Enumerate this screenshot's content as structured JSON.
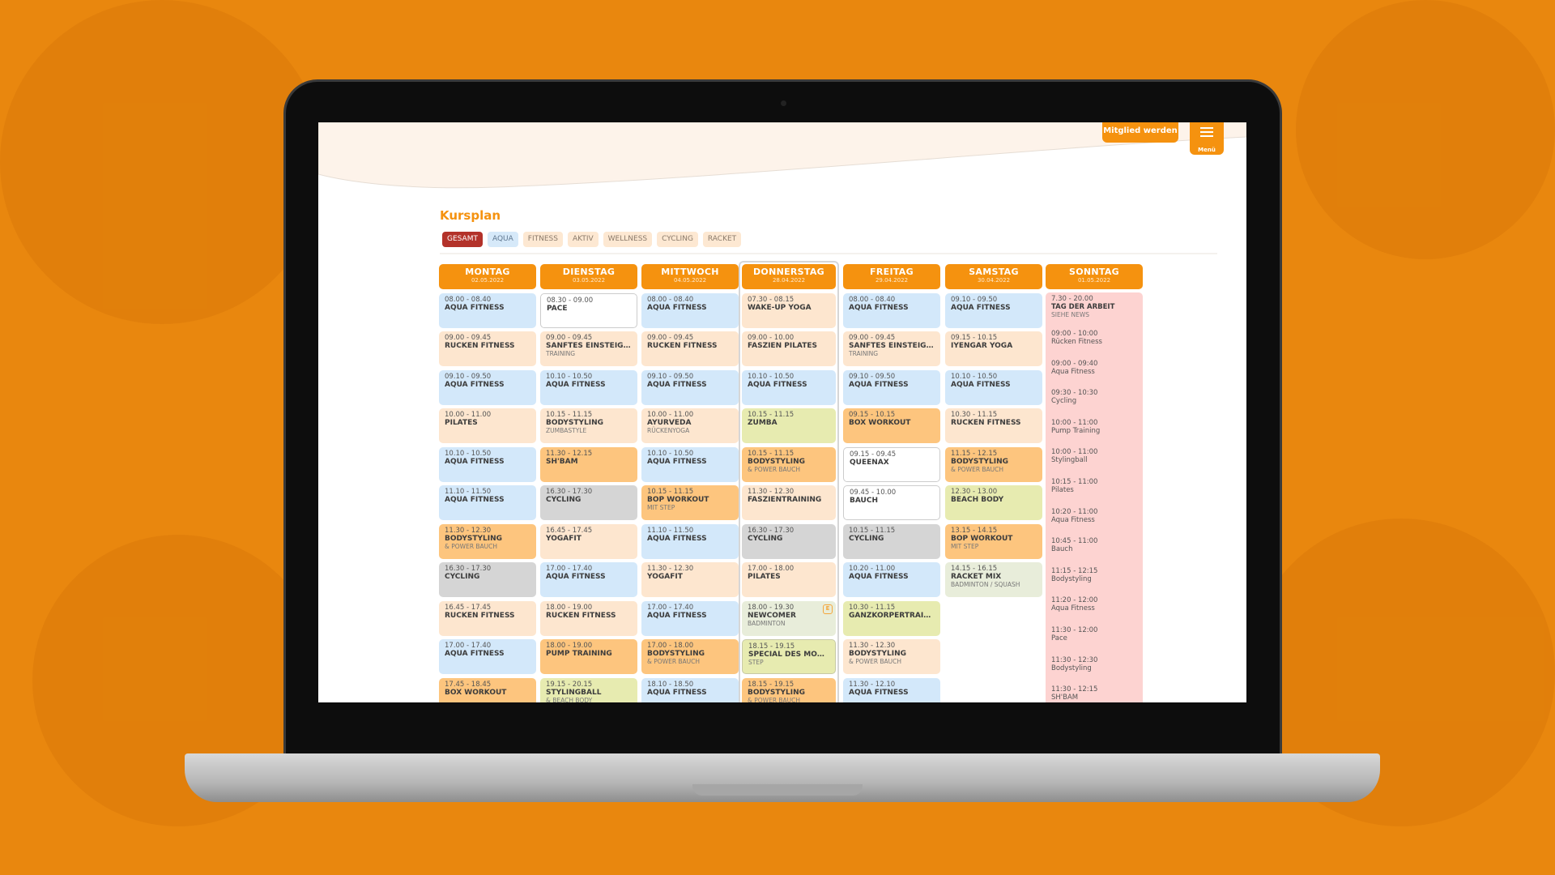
{
  "header": {
    "member_button": "Mitglied werden",
    "menu_label": "Menü"
  },
  "page_title": "Kursplan",
  "filters": [
    {
      "label": "GESAMT",
      "active": true
    },
    {
      "label": "AQUA"
    },
    {
      "label": "FITNESS"
    },
    {
      "label": "AKTIV"
    },
    {
      "label": "WELLNESS"
    },
    {
      "label": "CYCLING"
    },
    {
      "label": "RACKET"
    }
  ],
  "colors": {
    "accent": "#f5920f",
    "active_filter": "#b3322a",
    "aqua": "#d3e8fa",
    "fitness": "#fde6cf",
    "aktiv": "#fdc57e",
    "cycling": "#d5d5d5",
    "wellness": "#e7ebb0",
    "racket": "#e8edda",
    "holiday": "#fdd3d1"
  },
  "days": [
    {
      "day": "MONTAG",
      "date": "02.05.2022",
      "courses": [
        {
          "time": "08.00 - 08.40",
          "name": "AQUA FITNESS",
          "type": "aqua"
        },
        {
          "time": "09.00 - 09.45",
          "name": "RÜCKEN FITNESS",
          "type": "fitness"
        },
        {
          "time": "09.10 - 09.50",
          "name": "AQUA FITNESS",
          "type": "aqua"
        },
        {
          "time": "10.00 - 11.00",
          "name": "PILATES",
          "type": "fitness"
        },
        {
          "time": "10.10 - 10.50",
          "name": "AQUA FITNESS",
          "type": "aqua"
        },
        {
          "time": "11.10 - 11.50",
          "name": "AQUA FITNESS",
          "type": "aqua"
        },
        {
          "time": "11.30 - 12.30",
          "name": "BODYSTYLING",
          "sub": "& POWER BAUCH",
          "type": "orange"
        },
        {
          "time": "16.30 - 17.30",
          "name": "CYCLING",
          "type": "gray"
        },
        {
          "time": "16.45 - 17.45",
          "name": "RÜCKEN FITNESS",
          "type": "fitness"
        },
        {
          "time": "17.00 - 17.40",
          "name": "AQUA FITNESS",
          "type": "aqua"
        },
        {
          "time": "17.45 - 18.45",
          "name": "BOX WORKOUT",
          "type": "orange"
        }
      ]
    },
    {
      "day": "DIENSTAG",
      "date": "03.05.2022",
      "courses": [
        {
          "time": "08.30 - 09.00",
          "name": "PACE",
          "type": "white"
        },
        {
          "time": "09.00 - 09.45",
          "name": "SANFTES EINSTEIGER-",
          "sub": "TRAINING",
          "type": "fitness"
        },
        {
          "time": "10.10 - 10.50",
          "name": "AQUA FITNESS",
          "type": "aqua"
        },
        {
          "time": "10.15 - 11.15",
          "name": "BODYSTYLING",
          "sub": "ZUMBASTYLE",
          "type": "fitness"
        },
        {
          "time": "11.30 - 12.15",
          "name": "SH'BAM",
          "type": "orange"
        },
        {
          "time": "16.30 - 17.30",
          "name": "CYCLING",
          "type": "gray"
        },
        {
          "time": "16.45 - 17.45",
          "name": "YOGAFIT",
          "type": "fitness"
        },
        {
          "time": "17.00 - 17.40",
          "name": "AQUA FITNESS",
          "type": "aqua"
        },
        {
          "time": "18.00 - 19.00",
          "name": "RÜCKEN FITNESS",
          "type": "fitness"
        },
        {
          "time": "18.00 - 19.00",
          "name": "PUMP TRAINING",
          "type": "orange"
        },
        {
          "time": "19.15 - 20.15",
          "name": "STYLINGBALL",
          "sub": "& BEACH BODY",
          "type": "well"
        }
      ]
    },
    {
      "day": "MITTWOCH",
      "date": "04.05.2022",
      "courses": [
        {
          "time": "08.00 - 08.40",
          "name": "AQUA FITNESS",
          "type": "aqua"
        },
        {
          "time": "09.00 - 09.45",
          "name": "RÜCKEN FITNESS",
          "type": "fitness"
        },
        {
          "time": "09.10 - 09.50",
          "name": "AQUA FITNESS",
          "type": "aqua"
        },
        {
          "time": "10.00 - 11.00",
          "name": "AYURVEDA",
          "sub": "RÜCKENYOGA",
          "type": "fitness"
        },
        {
          "time": "10.10 - 10.50",
          "name": "AQUA FITNESS",
          "type": "aqua"
        },
        {
          "time": "10.15 - 11.15",
          "name": "BOP WORKOUT",
          "sub": "MIT STEP",
          "type": "orange"
        },
        {
          "time": "11.10 - 11.50",
          "name": "AQUA FITNESS",
          "type": "aqua"
        },
        {
          "time": "11.30 - 12.30",
          "name": "YOGAFIT",
          "type": "fitness"
        },
        {
          "time": "17.00 - 17.40",
          "name": "AQUA FITNESS",
          "type": "aqua"
        },
        {
          "time": "17.00 - 18.00",
          "name": "BODYSTYLING",
          "sub": "& POWER BAUCH",
          "type": "orange"
        },
        {
          "time": "18.10 - 18.50",
          "name": "AQUA FITNESS",
          "type": "aqua"
        }
      ]
    },
    {
      "day": "DONNERSTAG",
      "date": "28.04.2022",
      "today": true,
      "courses": [
        {
          "time": "07.30 - 08.15",
          "name": "WAKE-UP YOGA",
          "type": "fitness"
        },
        {
          "time": "09.00 - 10.00",
          "name": "FASZIEN PILATES",
          "type": "fitness"
        },
        {
          "time": "10.10 - 10.50",
          "name": "AQUA FITNESS",
          "type": "aqua"
        },
        {
          "time": "10.15 - 11.15",
          "name": "ZUMBA",
          "type": "well"
        },
        {
          "time": "10.15 - 11.15",
          "name": "BODYSTYLING",
          "sub": "& POWER BAUCH",
          "type": "orange"
        },
        {
          "time": "11.30 - 12.30",
          "name": "FASZIENTRAINING",
          "type": "fitness"
        },
        {
          "time": "16.30 - 17.30",
          "name": "CYCLING",
          "type": "gray"
        },
        {
          "time": "17.00 - 18.00",
          "name": "PILATES",
          "type": "fitness"
        },
        {
          "time": "18.00 - 19.30",
          "name": "NEWCOMER",
          "sub": "BADMINTON",
          "type": "racket",
          "badge": "E"
        },
        {
          "time": "18.15 - 19.15",
          "name": "SPECIAL DES MON...",
          "sub": "STEP",
          "type": "well bd"
        },
        {
          "time": "18.15 - 19.15",
          "name": "BODYSTYLING",
          "sub": "& POWER BAUCH",
          "type": "orange"
        }
      ]
    },
    {
      "day": "FREITAG",
      "date": "29.04.2022",
      "courses": [
        {
          "time": "08.00 - 08.40",
          "name": "AQUA FITNESS",
          "type": "aqua"
        },
        {
          "time": "09.00 - 09.45",
          "name": "SANFTES EINSTEIGER-",
          "sub": "TRAINING",
          "type": "fitness"
        },
        {
          "time": "09.10 - 09.50",
          "name": "AQUA FITNESS",
          "type": "aqua"
        },
        {
          "time": "09.15 - 10.15",
          "name": "BOX WORKOUT",
          "type": "orange"
        },
        {
          "time": "09.15 - 09.45",
          "name": "QUEENAX",
          "type": "white"
        },
        {
          "time": "09.45 - 10.00",
          "name": "BAUCH",
          "type": "white"
        },
        {
          "time": "10.15 - 11.15",
          "name": "CYCLING",
          "type": "gray"
        },
        {
          "time": "10.20 - 11.00",
          "name": "AQUA FITNESS",
          "type": "aqua"
        },
        {
          "time": "10.30 - 11.15",
          "name": "GANZKÖRPERTRAINI...",
          "type": "well"
        },
        {
          "time": "11.30 - 12.30",
          "name": "BODYSTYLING",
          "sub": "& POWER BAUCH",
          "type": "fitness"
        },
        {
          "time": "11.30 - 12.10",
          "name": "AQUA FITNESS",
          "type": "aqua"
        }
      ]
    },
    {
      "day": "SAMSTAG",
      "date": "30.04.2022",
      "courses": [
        {
          "time": "09.10 - 09.50",
          "name": "AQUA FITNESS",
          "type": "aqua"
        },
        {
          "time": "09.15 - 10.15",
          "name": "IYENGAR YOGA",
          "type": "fitness"
        },
        {
          "time": "10.10 - 10.50",
          "name": "AQUA FITNESS",
          "type": "aqua"
        },
        {
          "time": "10.30 - 11.15",
          "name": "RÜCKEN FITNESS",
          "type": "fitness"
        },
        {
          "time": "11.15 - 12.15",
          "name": "BODYSTYLING",
          "sub": "& POWER BAUCH",
          "type": "orange"
        },
        {
          "time": "12.30 - 13.00",
          "name": "BEACH BODY",
          "type": "well"
        },
        {
          "time": "13.15 - 14.15",
          "name": "BOP WORKOUT",
          "sub": "MIT STEP",
          "type": "orange"
        },
        {
          "time": "14.15 - 16.15",
          "name": "RACKET MIX",
          "sub": "BADMINTON / SQUASH",
          "type": "racket"
        }
      ]
    }
  ],
  "sunday": {
    "day": "SONNTAG",
    "date": "01.05.2022",
    "holiday": {
      "time": "7.30 - 20.00",
      "name": "TAG DER ARBEIT",
      "sub": "SIEHE NEWS"
    },
    "entries": [
      {
        "time": "09:00 - 10:00",
        "name": "Rücken Fitness"
      },
      {
        "time": "09:00 - 09:40",
        "name": "Aqua Fitness"
      },
      {
        "time": "09:30 - 10:30",
        "name": "Cycling"
      },
      {
        "time": "10:00 - 11:00",
        "name": "Pump Training"
      },
      {
        "time": "10:00 - 11:00",
        "name": "Stylingball"
      },
      {
        "time": "10:15 - 11:00",
        "name": "Pilates"
      },
      {
        "time": "10:20 - 11:00",
        "name": "Aqua Fitness"
      },
      {
        "time": "10:45 - 11:00",
        "name": "Bauch"
      },
      {
        "time": "11:15 - 12:15",
        "name": "Bodystyling"
      },
      {
        "time": "11:20 - 12:00",
        "name": "Aqua Fitness"
      },
      {
        "time": "11:30 - 12:00",
        "name": "Pace"
      },
      {
        "time": "11:30 - 12:30",
        "name": "Bodystyling"
      },
      {
        "time": "11:30 - 12:15",
        "name": "SH'BAM"
      }
    ]
  }
}
